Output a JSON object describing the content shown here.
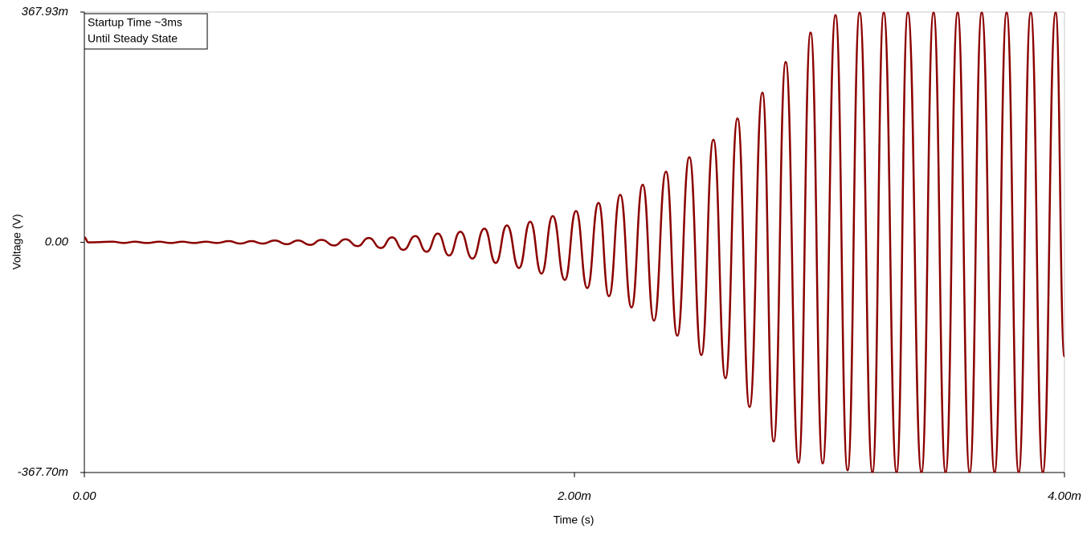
{
  "chart_data": {
    "type": "line",
    "x_label": "Time (s)",
    "y_label": "Voltage (V)",
    "annotation": [
      "Startup Time ~3ms",
      "Until Steady State"
    ],
    "color": "#8b0000",
    "xlim": [
      0,
      0.004
    ],
    "ylim": [
      -0.3677,
      0.36793
    ],
    "xticks": [
      {
        "value": 0,
        "label": "0.00"
      },
      {
        "value": 0.002,
        "label": "2.00m"
      },
      {
        "value": 0.004,
        "label": "4.00m"
      }
    ],
    "yticks": [
      {
        "value": -0.3677,
        "label": "-367.70m"
      },
      {
        "value": 0,
        "label": "0.00"
      },
      {
        "value": 0.36793,
        "label": "367.93m"
      }
    ],
    "x": [
      0,
      1.64e-05,
      0.0001148,
      0.0001607,
      0.0002066,
      0.0002557,
      0.0003049,
      0.0003508,
      0.0004,
      0.0004459,
      0.0004951,
      0.000541,
      0.0005902,
      0.0006361,
      0.000682,
      0.0007279,
      0.000777,
      0.0008262,
      0.0008721,
      0.0009213,
      0.0009672,
      0.0010197,
      0.0010656,
      0.0011148,
      0.0011607,
      0.0012098,
      0.0012557,
      0.0013016,
      0.0013508,
      0.0013967,
      0.0014426,
      0.0014885,
      0.0015344,
      0.0015836,
      0.0016328,
      0.0016787,
      0.0017246,
      0.0017738,
      0.0018197,
      0.0018656,
      0.0019115,
      0.0019607,
      0.0020066,
      0.0020525,
      0.0020984,
      0.002141,
      0.0021869,
      0.0022328,
      0.0022787,
      0.0023246,
      0.0023738,
      0.0024197,
      0.0024689,
      0.002518,
      0.0025672,
      0.0026164,
      0.0026656,
      0.0027148,
      0.0027672,
      0.0028131,
      0.0028623,
      0.0029148,
      0.0029639,
      0.0030131,
      0.0030656,
      0.0031148,
      0.0031639,
      0.0032164,
      0.0032623,
      0.0033148,
      0.0033607,
      0.0034164,
      0.0034656,
      0.0035148,
      0.0035639,
      0.0036131,
      0.0036623,
      0.0037148,
      0.0037639,
      0.0038131,
      0.0038623,
      0.0039115,
      0.0039639,
      0.004
    ],
    "values": [
      0.008,
      0,
      0.001,
      -0.001,
      0.001,
      -0.001,
      0.001,
      -0.001,
      0.001,
      -0.001,
      0.001,
      -0.001,
      0.002,
      -0.002,
      0.002,
      -0.002,
      0.003,
      -0.003,
      0.003,
      -0.004,
      0.004,
      -0.005,
      0.005,
      -0.006,
      0.007,
      -0.009,
      0.008,
      -0.012,
      0.01,
      -0.015,
      0.014,
      -0.021,
      0.017,
      -0.026,
      0.022,
      -0.033,
      0.027,
      -0.041,
      0.033,
      -0.05,
      0.042,
      -0.06,
      0.05,
      -0.073,
      0.063,
      -0.086,
      0.076,
      -0.104,
      0.092,
      -0.125,
      0.113,
      -0.149,
      0.136,
      -0.18,
      0.164,
      -0.217,
      0.198,
      -0.263,
      0.239,
      -0.318,
      0.288,
      -0.352,
      0.335,
      -0.353,
      0.363,
      -0.364,
      0.367,
      -0.367,
      0.367,
      -0.367,
      0.367,
      -0.367,
      0.367,
      -0.367,
      0.367,
      -0.367,
      0.367,
      -0.367,
      0.367,
      -0.367,
      0.367,
      -0.367,
      0.367,
      -0.182
    ]
  }
}
